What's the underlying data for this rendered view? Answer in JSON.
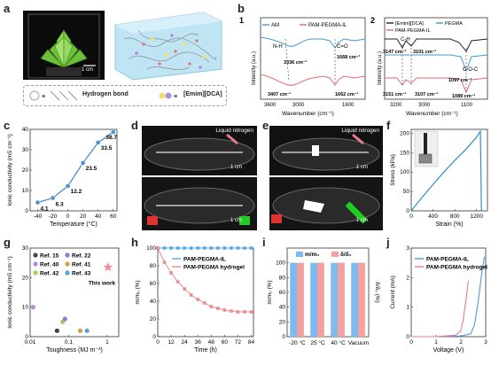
{
  "panels": {
    "a": {
      "label": "a",
      "scale_bar": "1 cm",
      "legend": {
        "hbond": "Hydrogen bond",
        "ionic_liquid": "[Emim][DCA]"
      }
    },
    "b": {
      "label": "b",
      "sub1": {
        "num": "1",
        "legend": [
          "AM",
          "PAM-PEGMA-IL"
        ],
        "annotations": [
          "N-H",
          "C=O",
          "3336 cm⁻¹",
          "1668 cm⁻¹",
          "3407 cm⁻¹",
          "1662 cm⁻¹"
        ],
        "xlabel": "Wavenumber (cm⁻¹)",
        "ylabel": "Intensity (a.u.)",
        "xticks": [
          "3600",
          "3000",
          "1600"
        ]
      },
      "sub2": {
        "num": "2",
        "legend": [
          "[Emim][DCA]",
          "PEGMA",
          "PAM-PEGMA-IL"
        ],
        "annotations": [
          "C-H",
          "C-O-C",
          "3147 cm⁻¹",
          "3101 cm⁻¹",
          "3151 cm⁻¹",
          "3107 cm⁻¹",
          "1097 cm⁻¹",
          "1089 cm⁻¹"
        ],
        "xlabel": "Wavenumber (cm⁻¹)",
        "ylabel": "Intensity (a.u.)",
        "xticks": [
          "3200",
          "3000",
          "1100"
        ]
      }
    },
    "c": {
      "label": "c"
    },
    "d": {
      "label": "d",
      "tag": "Liquid nitrogen",
      "scale_bar": "1 cm"
    },
    "e": {
      "label": "e",
      "tag": "Liquid nitrogen",
      "scale_bar": "1 cm"
    },
    "f": {
      "label": "f"
    },
    "g": {
      "label": "g",
      "annotation": "This work"
    },
    "h": {
      "label": "h"
    },
    "i": {
      "label": "i"
    },
    "j": {
      "label": "j"
    }
  },
  "chart_data": [
    {
      "panel": "c",
      "type": "line",
      "xlabel": "Temperature (°C)",
      "ylabel": "Ionic conductivity (mS cm⁻¹)",
      "x": [
        -40,
        -20,
        0,
        20,
        40,
        60
      ],
      "values": [
        4.1,
        6.3,
        12.2,
        23.5,
        33.5,
        38.7
      ],
      "data_labels": [
        "4.1",
        "6.3",
        "12.2",
        "23.5",
        "33.5",
        "38.7"
      ],
      "xlim": [
        -50,
        65
      ],
      "ylim": [
        0,
        40
      ],
      "xticks": [
        "-40",
        "-20",
        "0",
        "20",
        "40",
        "60"
      ],
      "yticks": [
        "0",
        "10",
        "20",
        "30",
        "40"
      ],
      "colors": {
        "line": "#3d86c6",
        "marker": "#4f95d4"
      }
    },
    {
      "panel": "f",
      "type": "line",
      "xlabel": "Strain (%)",
      "ylabel": "Stress (kPa)",
      "x": [
        0,
        200,
        400,
        600,
        800,
        1000,
        1200,
        1270,
        1290
      ],
      "values": [
        0,
        35,
        68,
        100,
        130,
        158,
        190,
        205,
        0
      ],
      "xlim": [
        0,
        1400
      ],
      "ylim": [
        0,
        210
      ],
      "xticks": [
        "0",
        "400",
        "800",
        "1200"
      ],
      "yticks": [
        "0",
        "50",
        "100",
        "150",
        "200"
      ],
      "colors": {
        "line": "#2e8fc8"
      }
    },
    {
      "panel": "g",
      "type": "scatter",
      "xlabel": "Toughness (MJ m⁻³)",
      "ylabel": "Ionic conductivity (mS cm⁻¹)",
      "log_x": true,
      "xlim": [
        0.01,
        2
      ],
      "ylim": [
        0,
        30
      ],
      "xticks": [
        "0.01",
        "0.1",
        "1"
      ],
      "yticks": [
        "0",
        "10",
        "20",
        "30"
      ],
      "points": [
        {
          "name": "Ref. 15",
          "x": 0.05,
          "y": 2.0,
          "color": "#444444"
        },
        {
          "name": "Ref. 40",
          "x": 0.012,
          "y": 10.0,
          "color": "#b58be0"
        },
        {
          "name": "Ref. 42",
          "x": 0.07,
          "y": 5.0,
          "color": "#9ccc65"
        },
        {
          "name": "Ref. 22",
          "x": 0.08,
          "y": 6.0,
          "color": "#7e7fd6"
        },
        {
          "name": "Ref. 41",
          "x": 0.2,
          "y": 2.0,
          "color": "#cfa04a"
        },
        {
          "name": "Ref. 43",
          "x": 0.3,
          "y": 2.0,
          "color": "#5c9fd6"
        },
        {
          "name": "This work",
          "x": 1.05,
          "y": 23.5,
          "color": "#f08a9a"
        }
      ]
    },
    {
      "panel": "h",
      "type": "line",
      "xlabel": "Time (h)",
      "ylabel": "m/m₀ (%)",
      "x": [
        0,
        6,
        12,
        18,
        24,
        30,
        36,
        42,
        48,
        54,
        60,
        66,
        72,
        78,
        84
      ],
      "series": [
        {
          "name": "PAM-PEGMA-IL",
          "color": "#5aa9e6",
          "values": [
            100,
            100,
            100,
            100,
            100,
            100,
            100,
            100,
            100,
            100,
            100,
            100,
            100,
            100,
            100
          ]
        },
        {
          "name": "PAM-PEGMA hydrogel",
          "color": "#ee8b8b",
          "values": [
            100,
            84,
            72,
            62,
            54,
            47,
            42,
            38,
            34,
            32,
            30,
            29,
            28,
            28,
            28
          ]
        }
      ],
      "xlim": [
        0,
        86
      ],
      "ylim": [
        0,
        100
      ],
      "xticks": [
        "0",
        "12",
        "24",
        "36",
        "48",
        "60",
        "72",
        "84"
      ],
      "yticks": [
        "0",
        "20",
        "40",
        "60",
        "80",
        "100"
      ]
    },
    {
      "panel": "i",
      "type": "bar",
      "ylabel": "m/m₀ (%)",
      "ylabel_right": "δ/δ₀ (%)",
      "categories": [
        "-20 °C",
        "25 °C",
        "40 °C",
        "Vacuum"
      ],
      "series": [
        {
          "name": "m/m₀",
          "color": "#7ebaf0",
          "values": [
            100,
            100,
            100,
            100
          ]
        },
        {
          "name": "δ/δ₀",
          "color": "#f4a0a0",
          "values": [
            100,
            100,
            100,
            100
          ]
        }
      ],
      "ylim": [
        0,
        120
      ],
      "yticks": [
        "0",
        "20",
        "40",
        "60",
        "80",
        "100"
      ]
    },
    {
      "panel": "j",
      "type": "line",
      "xlabel": "Voltage (V)",
      "ylabel": "Current (mA)",
      "xlim": [
        0,
        3
      ],
      "ylim": [
        0,
        3
      ],
      "xticks": [
        "0",
        "1",
        "2",
        "3"
      ],
      "yticks": [
        "0",
        "1",
        "2",
        "3"
      ],
      "series": [
        {
          "name": "PAM-PEGMA-IL",
          "color": "#4e9be0",
          "x": [
            0,
            1.0,
            2.0,
            2.4,
            2.55,
            2.7,
            2.85,
            2.95
          ],
          "values": [
            0,
            0,
            0.02,
            0.1,
            0.4,
            1.2,
            2.2,
            2.7
          ]
        },
        {
          "name": "PAM-PEGMA hydrogel",
          "color": "#ec7a8a",
          "x": [
            0,
            1.0,
            1.8,
            2.0,
            2.1,
            2.2,
            2.3
          ],
          "values": [
            0,
            0,
            0.05,
            0.2,
            0.6,
            1.2,
            1.9
          ]
        }
      ]
    }
  ]
}
